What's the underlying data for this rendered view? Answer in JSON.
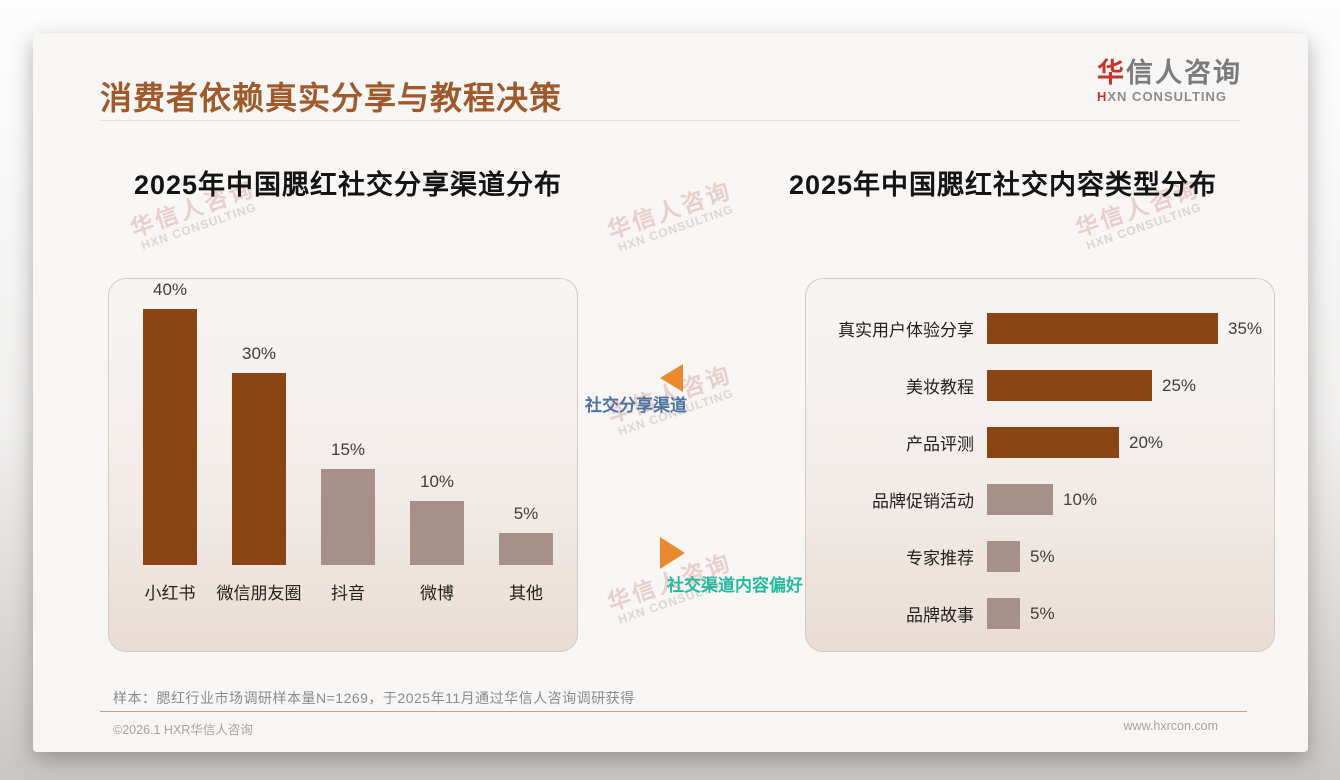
{
  "slide": {
    "title": "消费者依赖真实分享与教程决策",
    "logo": {
      "zh_accent": "华",
      "zh_rest": "信人咨询",
      "en_accent": "H",
      "en_rest": "XN CONSULTING"
    },
    "watermark": {
      "zh": "华信人咨询",
      "en": "HXN CONSULTING"
    },
    "note": "样本：腮红行业市场调研样本量N=1269，于2025年11月通过华信人咨询调研获得",
    "footer_left": "©2026.1 HXR华信人咨询",
    "footer_right": "www.hxrcon.com"
  },
  "middle": {
    "top_label": "社交分享渠道",
    "bottom_label": "社交渠道内容偏好"
  },
  "colors": {
    "title_brown": "#9E5A2B",
    "dark_bar": "#8A4514",
    "light_bar": "#A8908A",
    "arrow_orange": "#E98A2E",
    "blue_label": "#4F74A3",
    "teal_label": "#27B99E",
    "footer_rule": "#C9A183"
  },
  "chart_data": [
    {
      "type": "bar",
      "orientation": "vertical",
      "title": "2025年中国腮红社交分享渠道分布",
      "categories": [
        "小红书",
        "微信朋友圈",
        "抖音",
        "微博",
        "其他"
      ],
      "values": [
        40,
        30,
        15,
        10,
        5
      ],
      "value_labels": [
        "40%",
        "30%",
        "15%",
        "10%",
        "5%"
      ],
      "unit": "%",
      "ylim": [
        0,
        45
      ],
      "grid": false,
      "legend": "none",
      "bar_colors": [
        "#8A4514",
        "#8A4514",
        "#A8908A",
        "#A8908A",
        "#A8908A"
      ]
    },
    {
      "type": "bar",
      "orientation": "horizontal",
      "title": "2025年中国腮红社交内容类型分布",
      "categories": [
        "真实用户体验分享",
        "美妆教程",
        "产品评测",
        "品牌促销活动",
        "专家推荐",
        "品牌故事"
      ],
      "values": [
        35,
        25,
        20,
        10,
        5,
        5
      ],
      "value_labels": [
        "35%",
        "25%",
        "20%",
        "10%",
        "5%",
        "5%"
      ],
      "unit": "%",
      "xlim": [
        0,
        40
      ],
      "grid": false,
      "legend": "none",
      "bar_colors": [
        "#8A4514",
        "#8A4514",
        "#8A4514",
        "#A8908A",
        "#A8908A",
        "#A8908A"
      ]
    }
  ]
}
